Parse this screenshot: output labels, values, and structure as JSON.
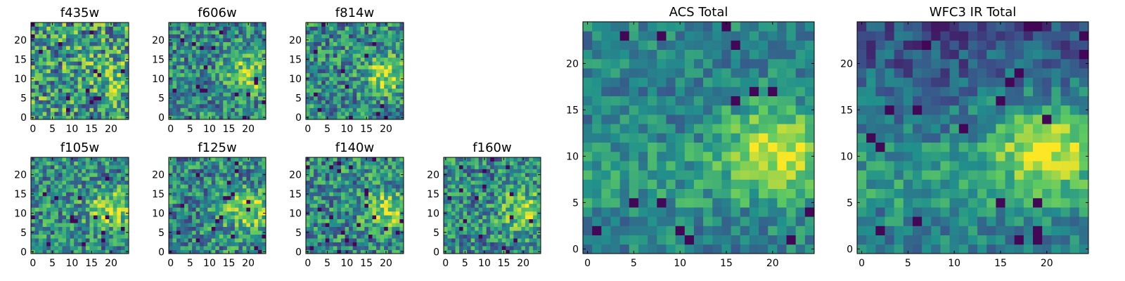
{
  "chart_data": [
    {
      "type": "heatmap",
      "title": "f435w",
      "xticks": [
        "0",
        "5",
        "10",
        "15",
        "20"
      ],
      "yticks": [
        "0",
        "5",
        "10",
        "15",
        "20"
      ],
      "range": [
        0,
        24
      ],
      "bright_region": "weak",
      "seed": 11
    },
    {
      "type": "heatmap",
      "title": "f606w",
      "xticks": [
        "0",
        "5",
        "10",
        "15",
        "20"
      ],
      "yticks": [
        "0",
        "5",
        "10",
        "15",
        "20"
      ],
      "range": [
        0,
        24
      ],
      "bright_region": "center-right",
      "seed": 23
    },
    {
      "type": "heatmap",
      "title": "f814w",
      "xticks": [
        "0",
        "5",
        "10",
        "15",
        "20"
      ],
      "yticks": [
        "0",
        "5",
        "10",
        "15",
        "20"
      ],
      "range": [
        0,
        24
      ],
      "bright_region": "center-right",
      "seed": 37
    },
    {
      "type": "heatmap",
      "title": "f105w",
      "xticks": [
        "0",
        "5",
        "10",
        "15",
        "20"
      ],
      "yticks": [
        "0",
        "5",
        "10",
        "15",
        "20"
      ],
      "range": [
        0,
        24
      ],
      "bright_region": "center-right",
      "seed": 41
    },
    {
      "type": "heatmap",
      "title": "f125w",
      "xticks": [
        "0",
        "5",
        "10",
        "15",
        "20"
      ],
      "yticks": [
        "0",
        "5",
        "10",
        "15",
        "20"
      ],
      "range": [
        0,
        24
      ],
      "bright_region": "center-right",
      "seed": 53
    },
    {
      "type": "heatmap",
      "title": "f140w",
      "xticks": [
        "0",
        "5",
        "10",
        "15",
        "20"
      ],
      "yticks": [
        "0",
        "5",
        "10",
        "15",
        "20"
      ],
      "range": [
        0,
        24
      ],
      "bright_region": "center-right",
      "seed": 67
    },
    {
      "type": "heatmap",
      "title": "f160w",
      "xticks": [
        "0",
        "5",
        "10",
        "15",
        "20"
      ],
      "yticks": [
        "0",
        "5",
        "10",
        "15",
        "20"
      ],
      "range": [
        0,
        24
      ],
      "bright_region": "center-right",
      "seed": 79
    },
    {
      "type": "heatmap",
      "title": "ACS Total",
      "xticks": [
        "0",
        "5",
        "10",
        "15",
        "20"
      ],
      "yticks": [
        "0",
        "5",
        "10",
        "15",
        "20"
      ],
      "range": [
        0,
        24
      ],
      "bright_region": "center-right",
      "seed": 83
    },
    {
      "type": "heatmap",
      "title": "WFC3 IR Total",
      "xticks": [
        "0",
        "5",
        "10",
        "15",
        "20"
      ],
      "yticks": [
        "0",
        "5",
        "10",
        "15",
        "20"
      ],
      "range": [
        0,
        24
      ],
      "bright_region": "center-right",
      "seed": 97
    }
  ],
  "colormap": [
    "#440154",
    "#3b528b",
    "#21918c",
    "#5ec962",
    "#fde725"
  ]
}
